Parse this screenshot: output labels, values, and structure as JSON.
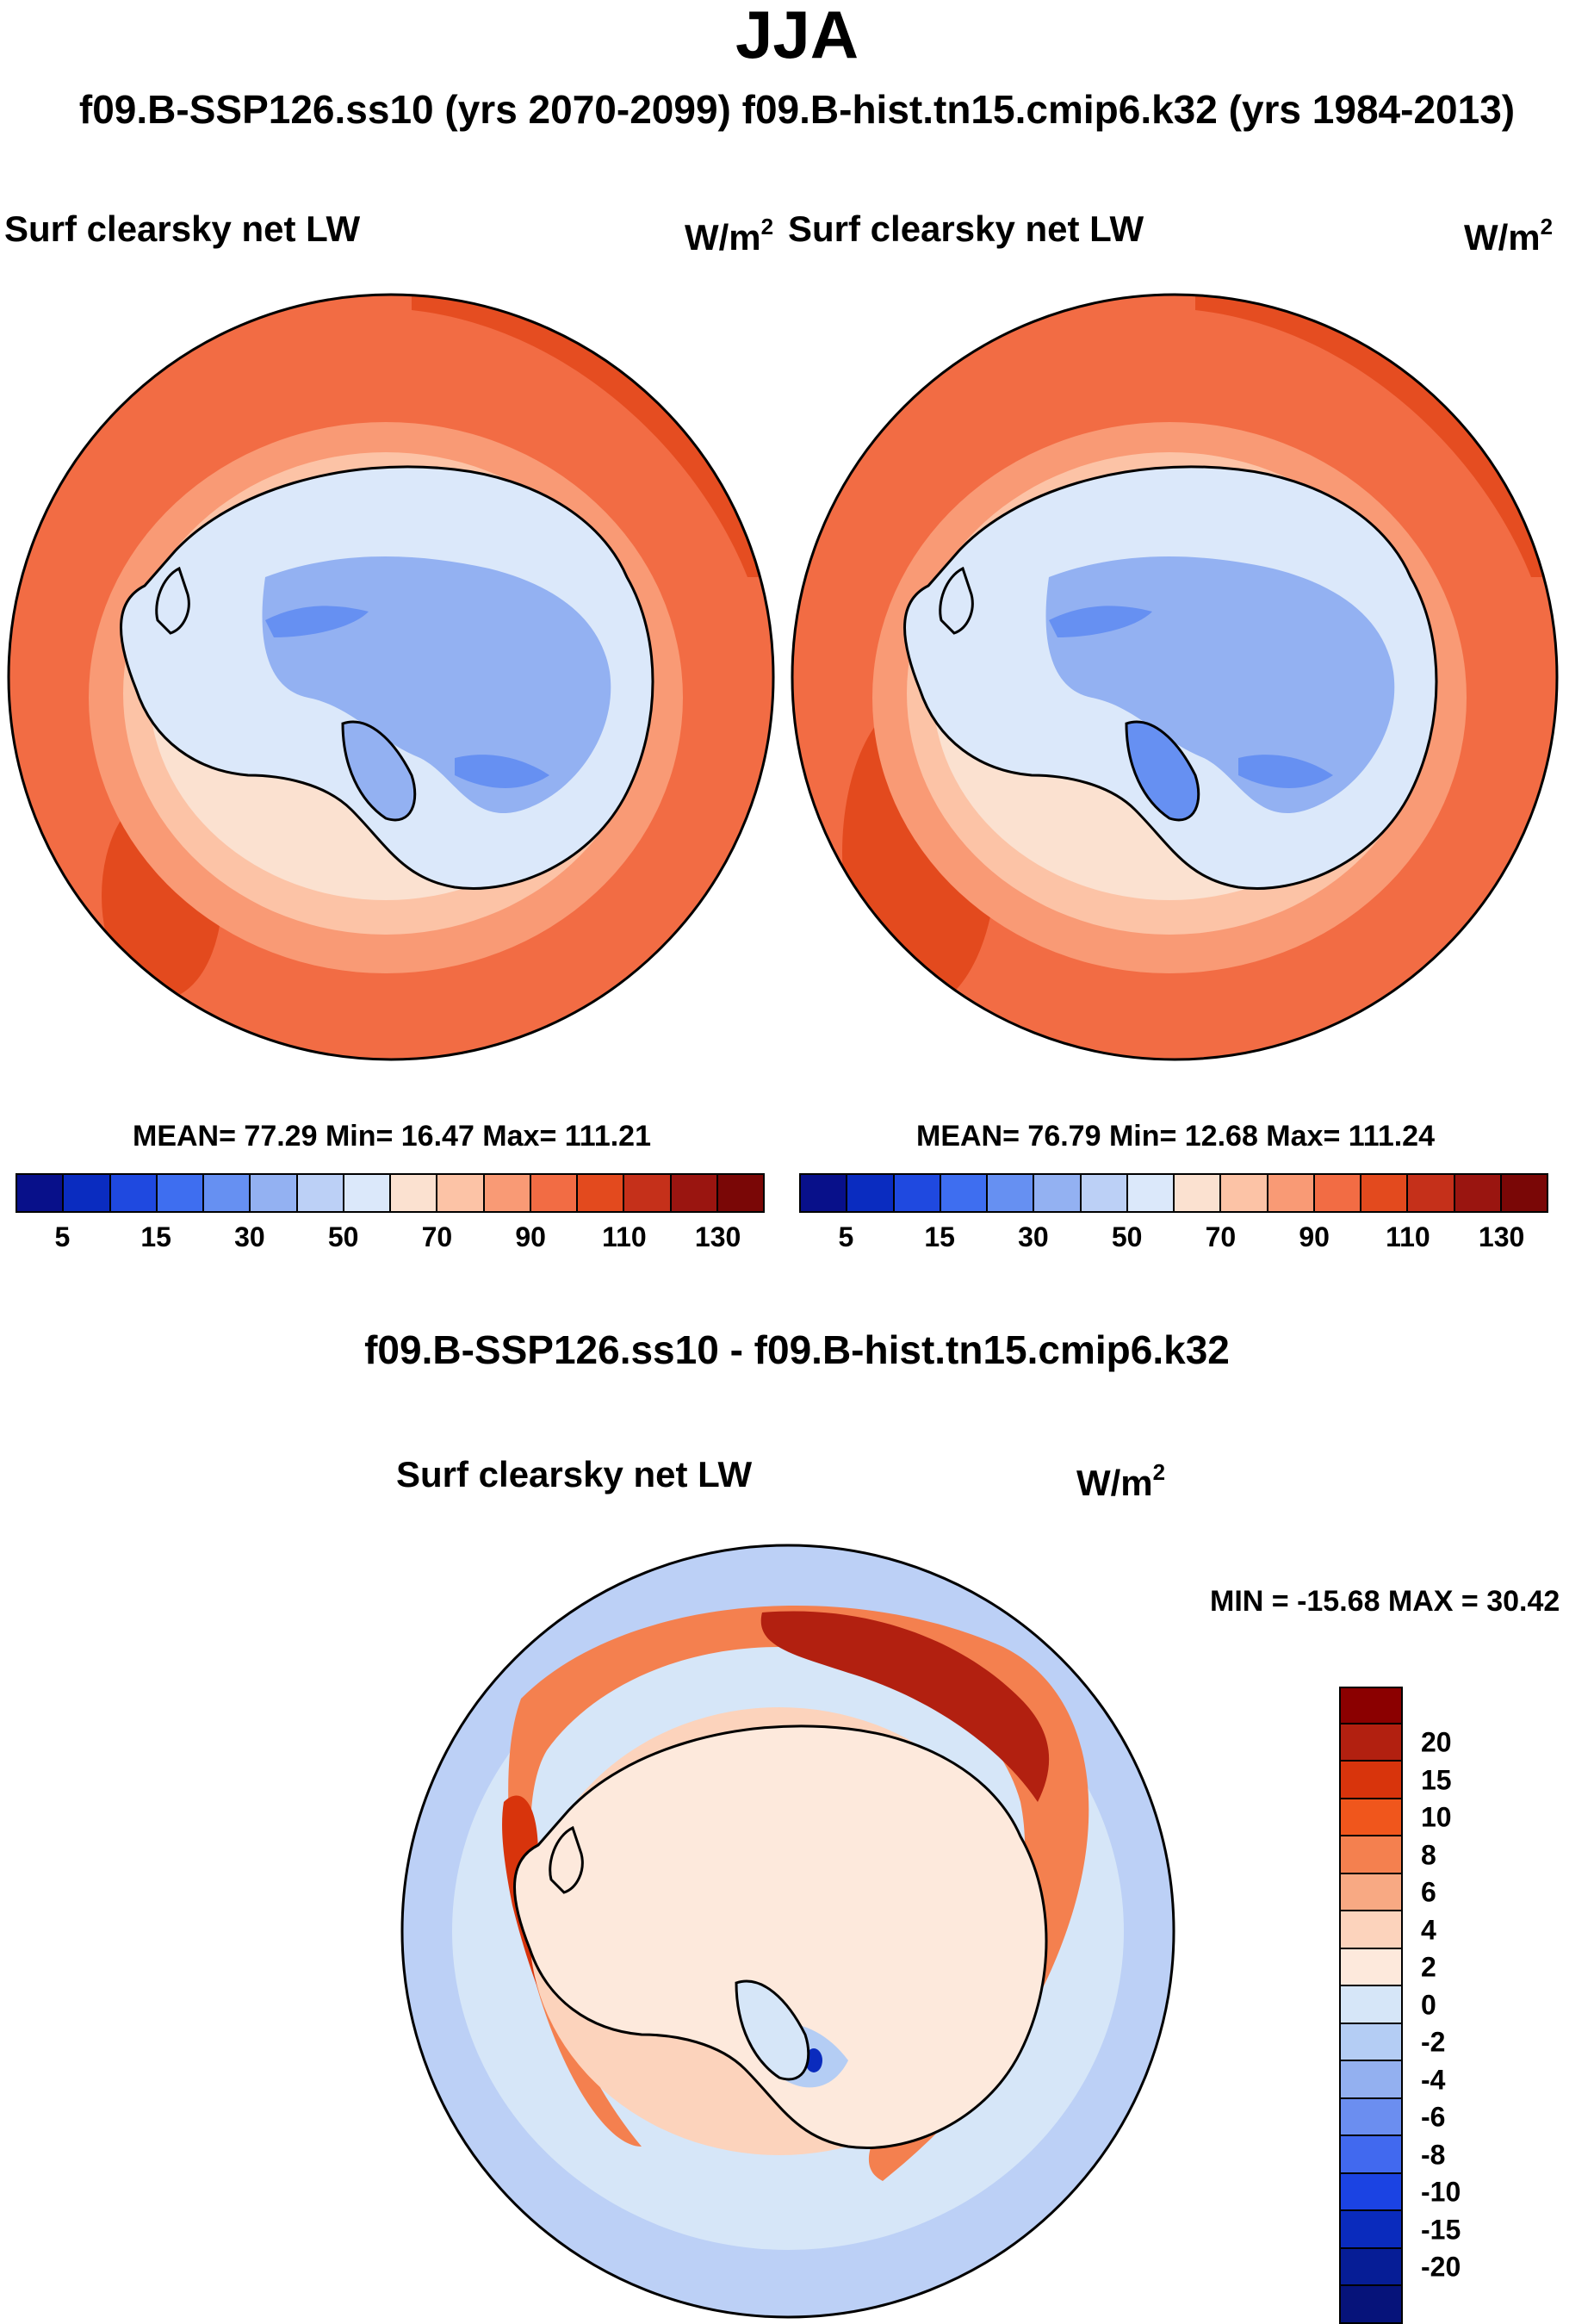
{
  "main_title": "JJA",
  "subtitle": "f09.B-SSP126.ss10 (yrs 2070-2099)  f09.B-hist.tn15.cmip6.k32 (yrs 1984-2013)",
  "panels": [
    {
      "title": "Surf clearsky net LW",
      "units_base": "W/m",
      "units_exp": "2",
      "stats": "MEAN=  77.29  Min=  16.47  Max= 111.21"
    },
    {
      "title": "Surf clearsky net LW",
      "units_base": "W/m",
      "units_exp": "2",
      "stats": "MEAN=  76.79  Min=  12.68  Max= 111.24"
    }
  ],
  "abs_colorbar": {
    "colors": [
      "#08108a",
      "#0a2cc0",
      "#1f49e0",
      "#3e6ef0",
      "#6690f2",
      "#93b1f2",
      "#bcd0f6",
      "#dbe8fa",
      "#fbe1d0",
      "#fcc3a6",
      "#f99a75",
      "#f26c44",
      "#e34a1e",
      "#c5301a",
      "#9a1510",
      "#7a0706"
    ],
    "labels": [
      "5",
      "15",
      "30",
      "50",
      "70",
      "90",
      "110",
      "130"
    ]
  },
  "diff_title": "f09.B-SSP126.ss10 - f09.B-hist.tn15.cmip6.k32",
  "diff_panel": {
    "title": "Surf clearsky net LW",
    "units_base": "W/m",
    "units_exp": "2",
    "minmax": "MIN = -15.68 MAX =  30.42"
  },
  "diff_colorbar": {
    "colors": [
      "#8b0000",
      "#b22010",
      "#d8340c",
      "#f0561c",
      "#f4804f",
      "#f8a983",
      "#fcd3bc",
      "#fde9dc",
      "#d6e6f8",
      "#b4cdf4",
      "#93b0f0",
      "#6b8ef0",
      "#4169ef",
      "#1b43e3",
      "#0a2bbd",
      "#061d96",
      "#06137a"
    ],
    "labels": [
      "20",
      "15",
      "10",
      "8",
      "6",
      "4",
      "2",
      "0",
      "-2",
      "-4",
      "-6",
      "-8",
      "-10",
      "-15",
      "-20"
    ]
  },
  "colors": {
    "outline": "#000000",
    "abs_ocean": "#f26c44",
    "abs_ocean_dark": "#e34a1e",
    "abs_ring1": "#f99a75",
    "abs_ring2": "#fcc3a6",
    "abs_ring3": "#fbe1d0",
    "abs_land": "#dbe8fa",
    "abs_land2": "#93b1f2",
    "abs_land3": "#6690f2",
    "diff_ocean": "#bcd0f6",
    "diff_ring": "#f26c44",
    "diff_ring_dark": "#9a1510",
    "diff_land": "#fde9dc"
  }
}
